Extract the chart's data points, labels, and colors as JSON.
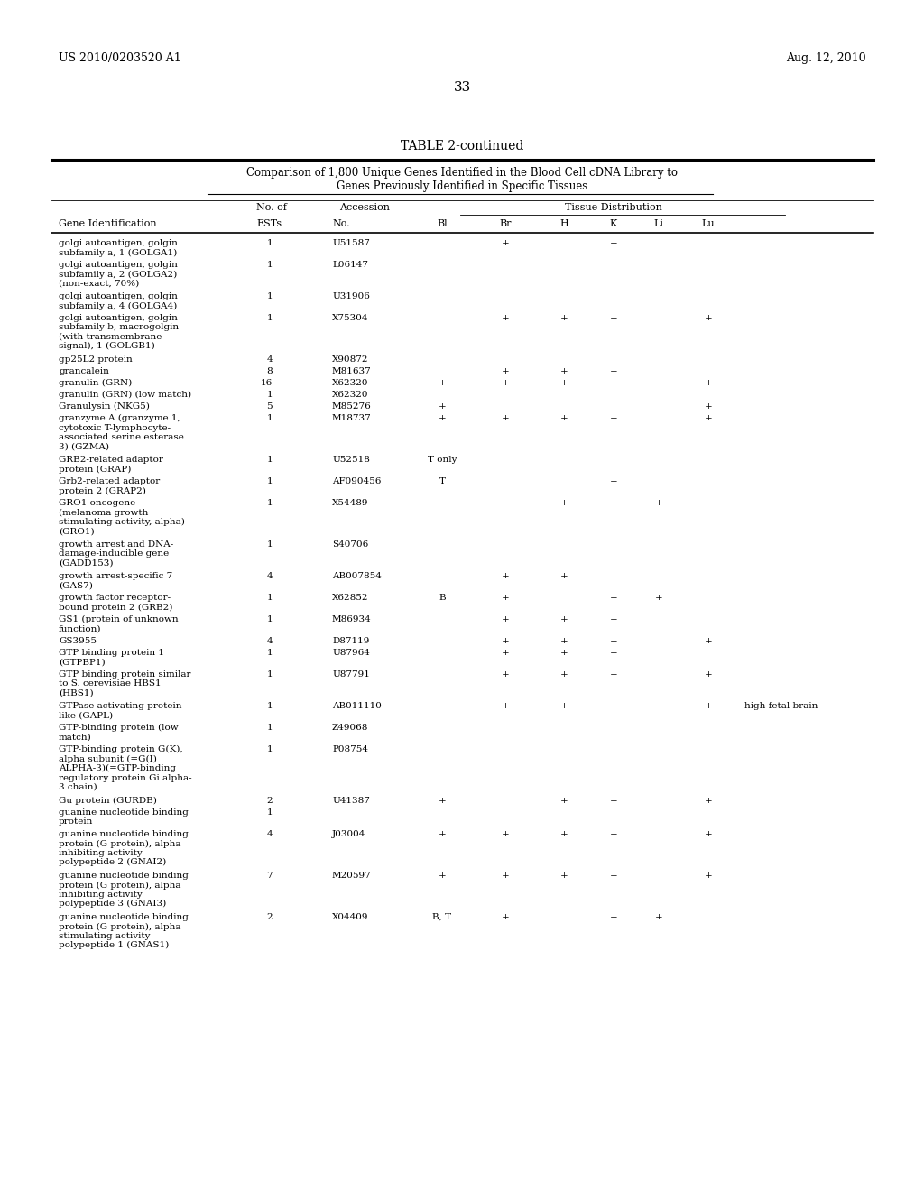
{
  "header_left": "US 2010/0203520 A1",
  "header_right": "Aug. 12, 2010",
  "page_number": "33",
  "table_title": "TABLE 2-continued",
  "subtitle_line1": "Comparison of 1,800 Unique Genes Identified in the Blood Cell cDNA Library to",
  "subtitle_line2": "Genes Previously Identified in Specific Tissues",
  "rows": [
    {
      "gene": "golgi autoantigen, golgin\nsubfamily a, 1 (GOLGA1)",
      "ests": "1",
      "acc": "U51587",
      "bl": "",
      "br": "+",
      "h": "",
      "k": "+",
      "li": "",
      "lu": "",
      "note": ""
    },
    {
      "gene": "golgi autoantigen, golgin\nsubfamily a, 2 (GOLGA2)\n(non-exact, 70%)",
      "ests": "1",
      "acc": "L06147",
      "bl": "",
      "br": "",
      "h": "",
      "k": "",
      "li": "",
      "lu": "",
      "note": ""
    },
    {
      "gene": "golgi autoantigen, golgin\nsubfamily a, 4 (GOLGA4)",
      "ests": "1",
      "acc": "U31906",
      "bl": "",
      "br": "",
      "h": "",
      "k": "",
      "li": "",
      "lu": "",
      "note": ""
    },
    {
      "gene": "golgi autoantigen, golgin\nsubfamily b, macrogolgin\n(with transmembrane\nsignal), 1 (GOLGB1)",
      "ests": "1",
      "acc": "X75304",
      "bl": "",
      "br": "+",
      "h": "+",
      "k": "+",
      "li": "",
      "lu": "+",
      "note": ""
    },
    {
      "gene": "gp25L2 protein",
      "ests": "4",
      "acc": "X90872",
      "bl": "",
      "br": "",
      "h": "",
      "k": "",
      "li": "",
      "lu": "",
      "note": ""
    },
    {
      "gene": "grancalein",
      "ests": "8",
      "acc": "M81637",
      "bl": "",
      "br": "+",
      "h": "+",
      "k": "+",
      "li": "",
      "lu": "",
      "note": ""
    },
    {
      "gene": "granulin (GRN)",
      "ests": "16",
      "acc": "X62320",
      "bl": "+",
      "br": "+",
      "h": "+",
      "k": "+",
      "li": "",
      "lu": "+",
      "note": ""
    },
    {
      "gene": "granulin (GRN) (low match)",
      "ests": "1",
      "acc": "X62320",
      "bl": "",
      "br": "",
      "h": "",
      "k": "",
      "li": "",
      "lu": "",
      "note": ""
    },
    {
      "gene": "Granulysin (NKG5)",
      "ests": "5",
      "acc": "M85276",
      "bl": "+",
      "br": "",
      "h": "",
      "k": "",
      "li": "",
      "lu": "+",
      "note": ""
    },
    {
      "gene": "granzyme A (granzyme 1,\ncytotoxic T-lymphocyte-\nassociated serine esterase\n3) (GZMA)",
      "ests": "1",
      "acc": "M18737",
      "bl": "+",
      "br": "+",
      "h": "+",
      "k": "+",
      "li": "",
      "lu": "+",
      "note": ""
    },
    {
      "gene": "GRB2-related adaptor\nprotein (GRAP)",
      "ests": "1",
      "acc": "U52518",
      "bl": "T only",
      "br": "",
      "h": "",
      "k": "",
      "li": "",
      "lu": "",
      "note": ""
    },
    {
      "gene": "Grb2-related adaptor\nprotein 2 (GRAP2)",
      "ests": "1",
      "acc": "AF090456",
      "bl": "T",
      "br": "",
      "h": "",
      "k": "+",
      "li": "",
      "lu": "",
      "note": ""
    },
    {
      "gene": "GRO1 oncogene\n(melanoma growth\nstimulating activity, alpha)\n(GRO1)",
      "ests": "1",
      "acc": "X54489",
      "bl": "",
      "br": "",
      "h": "+",
      "k": "",
      "li": "+",
      "lu": "",
      "note": ""
    },
    {
      "gene": "growth arrest and DNA-\ndamage-inducible gene\n(GADD153)",
      "ests": "1",
      "acc": "S40706",
      "bl": "",
      "br": "",
      "h": "",
      "k": "",
      "li": "",
      "lu": "",
      "note": ""
    },
    {
      "gene": "growth arrest-specific 7\n(GAS7)",
      "ests": "4",
      "acc": "AB007854",
      "bl": "",
      "br": "+",
      "h": "+",
      "k": "",
      "li": "",
      "lu": "",
      "note": ""
    },
    {
      "gene": "growth factor receptor-\nbound protein 2 (GRB2)",
      "ests": "1",
      "acc": "X62852",
      "bl": "B",
      "br": "+",
      "h": "",
      "k": "+",
      "li": "+",
      "lu": "",
      "note": ""
    },
    {
      "gene": "GS1 (protein of unknown\nfunction)",
      "ests": "1",
      "acc": "M86934",
      "bl": "",
      "br": "+",
      "h": "+",
      "k": "+",
      "li": "",
      "lu": "",
      "note": ""
    },
    {
      "gene": "GS3955",
      "ests": "4",
      "acc": "D87119",
      "bl": "",
      "br": "+",
      "h": "+",
      "k": "+",
      "li": "",
      "lu": "+",
      "note": ""
    },
    {
      "gene": "GTP binding protein 1\n(GTPBP1)",
      "ests": "1",
      "acc": "U87964",
      "bl": "",
      "br": "+",
      "h": "+",
      "k": "+",
      "li": "",
      "lu": "",
      "note": ""
    },
    {
      "gene": "GTP binding protein similar\nto S. cerevisiae HBS1\n(HBS1)",
      "ests": "1",
      "acc": "U87791",
      "bl": "",
      "br": "+",
      "h": "+",
      "k": "+",
      "li": "",
      "lu": "+",
      "note": ""
    },
    {
      "gene": "GTPase activating protein-\nlike (GAPL)",
      "ests": "1",
      "acc": "AB011110",
      "bl": "",
      "br": "+",
      "h": "+",
      "k": "+",
      "li": "",
      "lu": "+",
      "note": "high fetal brain"
    },
    {
      "gene": "GTP-binding protein (low\nmatch)",
      "ests": "1",
      "acc": "Z49068",
      "bl": "",
      "br": "",
      "h": "",
      "k": "",
      "li": "",
      "lu": "",
      "note": ""
    },
    {
      "gene": "GTP-binding protein G(K),\nalpha subunit (=G(I)\nALPHA-3)(=GTP-binding\nregulatory protein Gi alpha-\n3 chain)",
      "ests": "1",
      "acc": "P08754",
      "bl": "",
      "br": "",
      "h": "",
      "k": "",
      "li": "",
      "lu": "",
      "note": ""
    },
    {
      "gene": "Gu protein (GURDB)",
      "ests": "2",
      "acc": "U41387",
      "bl": "+",
      "br": "",
      "h": "+",
      "k": "+",
      "li": "",
      "lu": "+",
      "note": ""
    },
    {
      "gene": "guanine nucleotide binding\nprotein",
      "ests": "1",
      "acc": "",
      "bl": "",
      "br": "",
      "h": "",
      "k": "",
      "li": "",
      "lu": "",
      "note": ""
    },
    {
      "gene": "guanine nucleotide binding\nprotein (G protein), alpha\ninhibiting activity\npolypeptide 2 (GNAI2)",
      "ests": "4",
      "acc": "J03004",
      "bl": "+",
      "br": "+",
      "h": "+",
      "k": "+",
      "li": "",
      "lu": "+",
      "note": ""
    },
    {
      "gene": "guanine nucleotide binding\nprotein (G protein), alpha\ninhibiting activity\npolypeptide 3 (GNAI3)",
      "ests": "7",
      "acc": "M20597",
      "bl": "+",
      "br": "+",
      "h": "+",
      "k": "+",
      "li": "",
      "lu": "+",
      "note": ""
    },
    {
      "gene": "guanine nucleotide binding\nprotein (G protein), alpha\nstimulating activity\npolypeptide 1 (GNAS1)",
      "ests": "2",
      "acc": "X04409",
      "bl": "B, T",
      "br": "+",
      "h": "",
      "k": "+",
      "li": "+",
      "lu": "",
      "note": ""
    }
  ],
  "bg_color": "#ffffff",
  "text_color": "#000000"
}
